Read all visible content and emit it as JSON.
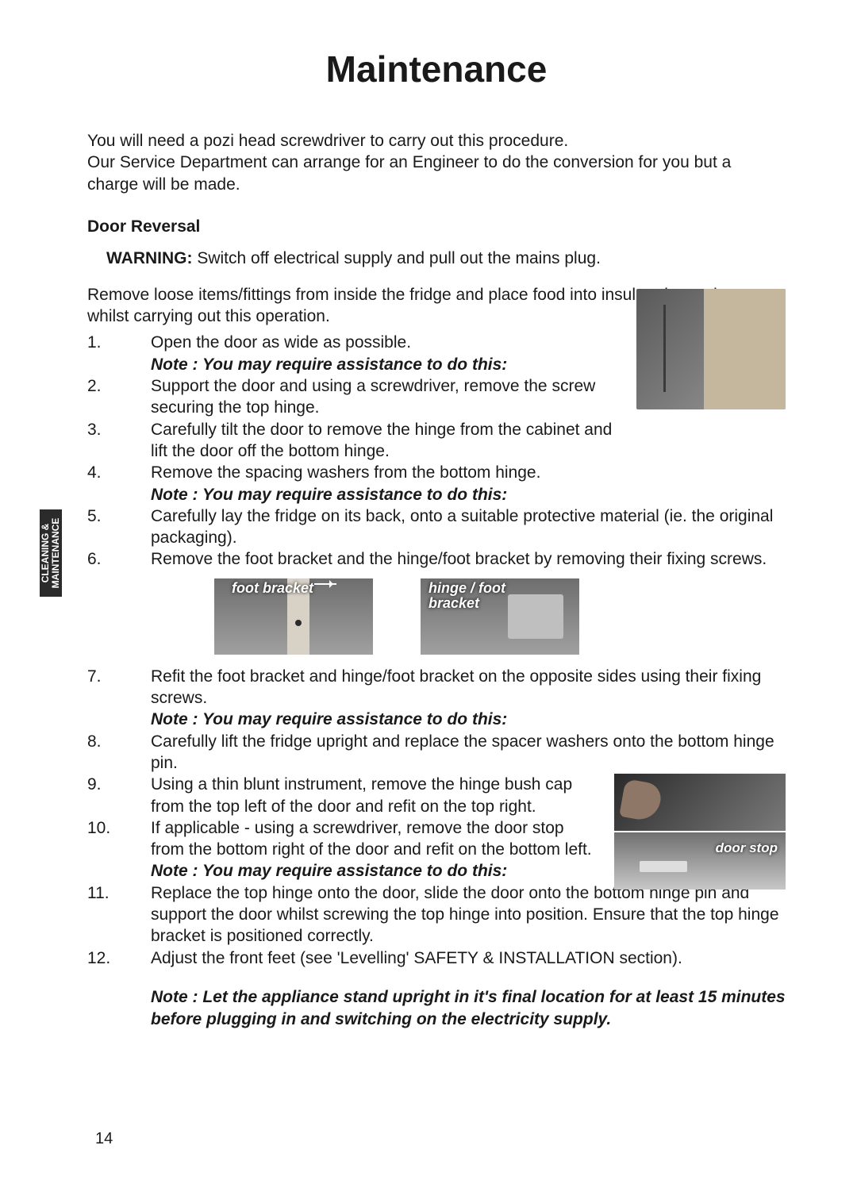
{
  "page": {
    "title": "Maintenance",
    "side_tab": "CLEANING &\nMAINTENANCE",
    "page_number": "14"
  },
  "intro": "You will need a pozi head screwdriver to carry out this procedure.\nOur Service Department can arrange for an Engineer to do the conversion for you but a charge will be made.",
  "section_heading": "Door Reversal",
  "warning_label": "WARNING:",
  "warning_text": " Switch off electrical supply and pull out the mains plug.",
  "preamble": "Remove loose items/fittings from inside the fridge and place food into insulated containers whilst carrying out this operation.",
  "notes": {
    "assist": "Note : You may require assistance to do this:",
    "final": "Note : Let the appliance stand upright in it's final location for at least 15 minutes before plugging in and switching on the electricity supply."
  },
  "figures": {
    "foot_bracket_label": "foot bracket",
    "hinge_bracket_label": "hinge / foot\nbracket",
    "door_stop_label": "door stop"
  },
  "steps": {
    "s1": "Open the door as wide as possible.",
    "s2": "Support the door and using a screwdriver, remove the screw securing the top hinge.",
    "s3": "Carefully tilt the door to remove the hinge from the cabinet and lift the door off the bottom hinge.",
    "s4": "Remove the spacing washers from the bottom hinge.",
    "s5": "Carefully lay the fridge on its back, onto a suitable protective material (ie. the original packaging).",
    "s6": "Remove the foot bracket and the hinge/foot bracket by removing their fixing screws.",
    "s7": "Refit the foot bracket and hinge/foot bracket on the opposite sides using their fixing screws.",
    "s8": "Carefully lift the fridge upright and replace the spacer washers onto the bottom hinge pin.",
    "s9": "Using a thin blunt instrument, remove the hinge bush cap from the top left of the door and refit on the top right.",
    "s10": "If applicable - using a screwdriver, remove the door stop from the bottom right of the door and refit on the bottom left.",
    "s11": "Replace the top hinge onto the door, slide the door onto the bottom hinge pin and support the door whilst screwing the top hinge into position.  Ensure that the top hinge bracket is positioned correctly.",
    "s12": "Adjust the front feet (see 'Levelling' SAFETY & INSTALLATION section)."
  },
  "nums": {
    "n1": "1.",
    "n2": "2.",
    "n3": "3.",
    "n4": "4.",
    "n5": "5.",
    "n6": "6.",
    "n7": "7.",
    "n8": "8.",
    "n9": "9.",
    "n10": "10.",
    "n11": "11.",
    "n12": "12."
  }
}
